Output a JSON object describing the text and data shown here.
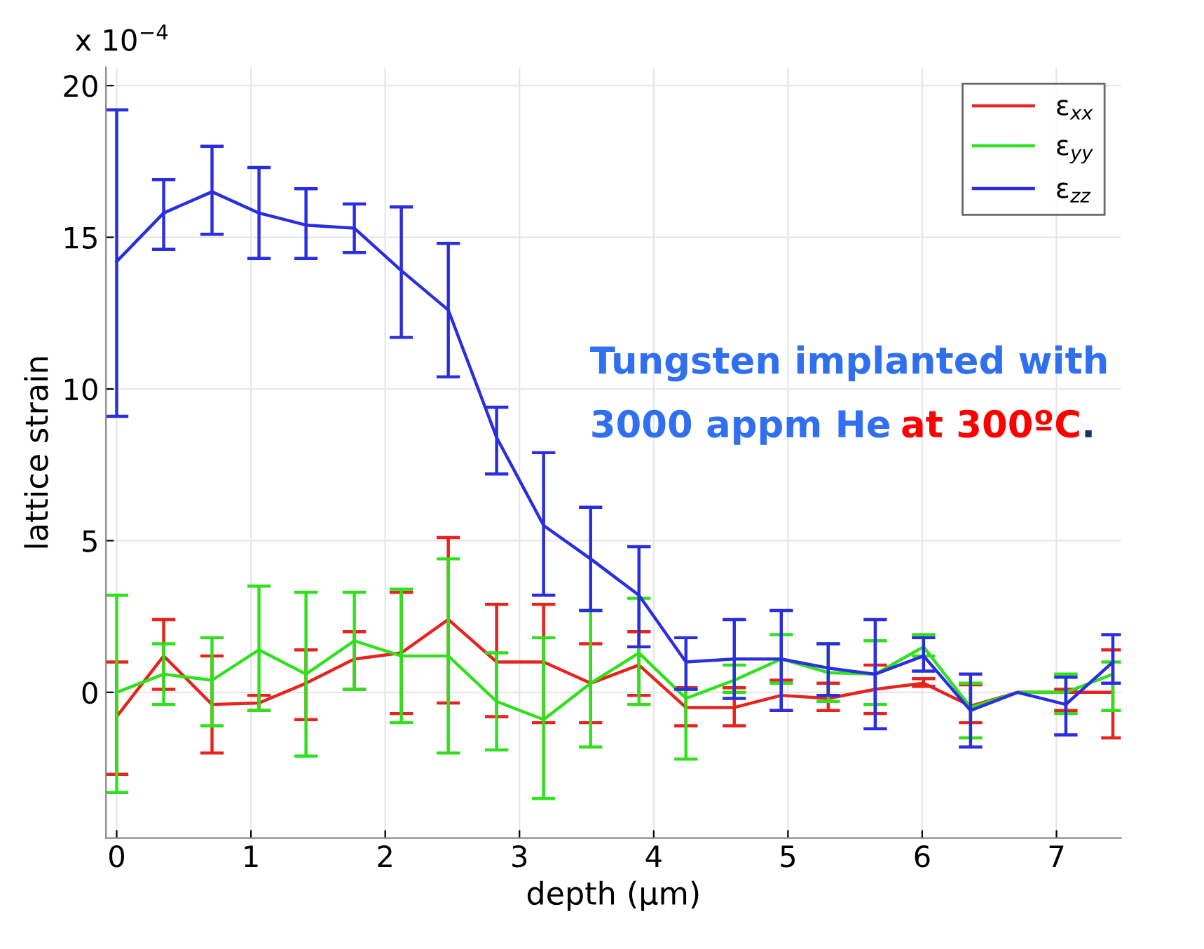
{
  "chart_data": {
    "type": "line",
    "xlabel": "depth (µm)",
    "ylabel": "lattice strain",
    "x": [
      0,
      0.35,
      0.71,
      1.06,
      1.41,
      1.77,
      2.12,
      2.47,
      2.83,
      3.18,
      3.53,
      3.89,
      4.24,
      4.6,
      4.95,
      5.3,
      5.65,
      6.01,
      6.36,
      6.71,
      7.07,
      7.42
    ],
    "series": [
      {
        "name": "ε$_{xx}$",
        "color": "#e8221c",
        "values": [
          -0.8,
          1.2,
          -0.4,
          -0.35,
          0.3,
          1.1,
          1.3,
          2.4,
          1.0,
          1.0,
          0.3,
          0.9,
          -0.5,
          -0.5,
          -0.1,
          -0.2,
          0.1,
          0.3,
          -0.45,
          0.0,
          0.0,
          0.0
        ],
        "errors": [
          [
            -2.7,
            1.0
          ],
          [
            0.1,
            2.4
          ],
          [
            -2.0,
            1.2
          ],
          [
            -0.6,
            -0.1
          ],
          [
            -0.9,
            1.4
          ],
          [
            0.1,
            2.0
          ],
          [
            -0.7,
            3.3
          ],
          [
            -0.35,
            5.1
          ],
          [
            -0.8,
            2.9
          ],
          [
            -1.0,
            2.9
          ],
          [
            -1.0,
            1.6
          ],
          [
            -0.1,
            2.0
          ],
          [
            -1.1,
            0.15
          ],
          [
            -1.1,
            0.15
          ],
          [
            -0.6,
            0.4
          ],
          [
            -0.6,
            0.3
          ],
          [
            -0.7,
            0.9
          ],
          [
            0.2,
            0.45
          ],
          [
            -1.0,
            0.25
          ],
          null,
          [
            -0.6,
            0.1
          ],
          [
            -1.5,
            1.4
          ]
        ]
      },
      {
        "name": "ε$_{yy}$",
        "color": "#2fe11c",
        "values": [
          0.0,
          0.6,
          0.4,
          1.4,
          0.6,
          1.7,
          1.2,
          1.2,
          -0.3,
          -0.9,
          0.3,
          1.3,
          -0.2,
          0.4,
          1.1,
          0.65,
          0.6,
          1.5,
          -0.5,
          0.0,
          0.0,
          0.6
        ],
        "errors": [
          [
            -3.3,
            3.2
          ],
          [
            -0.4,
            1.6
          ],
          [
            -1.1,
            1.8
          ],
          [
            -0.6,
            3.5
          ],
          [
            -2.1,
            3.3
          ],
          [
            0.1,
            3.3
          ],
          [
            -1.0,
            3.4
          ],
          [
            -2.0,
            4.4
          ],
          [
            -1.9,
            1.3
          ],
          [
            -3.5,
            1.8
          ],
          [
            -1.8,
            2.7
          ],
          [
            -0.4,
            3.1
          ],
          [
            -2.2,
            0.1
          ],
          [
            0.0,
            0.9
          ],
          [
            0.3,
            1.9
          ],
          [
            -0.3,
            1.6
          ],
          [
            -0.4,
            1.7
          ],
          [
            1.2,
            1.9
          ],
          [
            -1.5,
            0.3
          ],
          null,
          [
            -0.7,
            0.6
          ],
          [
            -0.6,
            1.0
          ]
        ]
      },
      {
        "name": "ε$_{zz}$",
        "color": "#2a2ee0",
        "values": [
          14.2,
          15.8,
          16.5,
          15.8,
          15.4,
          15.3,
          13.9,
          12.6,
          8.4,
          5.5,
          4.4,
          3.2,
          1.0,
          1.1,
          1.1,
          0.8,
          0.6,
          1.2,
          -0.6,
          0.0,
          -0.4,
          1.0
        ],
        "errors": [
          [
            9.1,
            19.2
          ],
          [
            14.6,
            16.9
          ],
          [
            15.1,
            18.0
          ],
          [
            14.3,
            17.3
          ],
          [
            14.3,
            16.6
          ],
          [
            14.5,
            16.1
          ],
          [
            11.7,
            16.0
          ],
          [
            10.4,
            14.8
          ],
          [
            7.2,
            9.4
          ],
          [
            3.2,
            7.9
          ],
          [
            2.7,
            6.1
          ],
          [
            1.5,
            4.8
          ],
          [
            0.1,
            1.8
          ],
          [
            -0.2,
            2.4
          ],
          [
            -0.6,
            2.7
          ],
          [
            -0.1,
            1.6
          ],
          [
            -1.2,
            2.4
          ],
          [
            0.7,
            1.8
          ],
          [
            -1.8,
            0.6
          ],
          null,
          [
            -1.4,
            0.5
          ],
          [
            0.3,
            1.9
          ]
        ]
      }
    ],
    "xlim": [
      -0.08,
      7.48
    ],
    "xticks": [
      0,
      1,
      2,
      3,
      4,
      5,
      6,
      7
    ],
    "ylim": [
      -4.8,
      20.6
    ],
    "yticks": [
      0,
      5,
      10,
      15,
      20
    ],
    "grid": true,
    "legend": "top right",
    "marker": "none",
    "line_style": "solid",
    "annotations": [
      "x 10$^{−4}$",
      "Tungsten implanted with",
      "3000 appm He",
      "at 300ºC",
      "."
    ]
  }
}
